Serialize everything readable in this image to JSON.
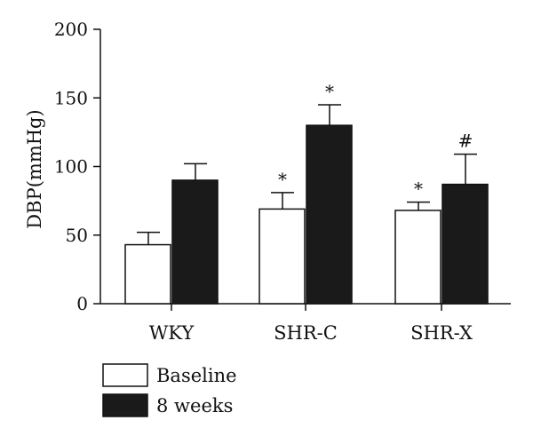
{
  "chart_data": {
    "type": "bar",
    "ylabel": "DBP(mmHg)",
    "xlabel": "",
    "ylim": [
      0,
      200
    ],
    "yticks": [
      0,
      50,
      100,
      150,
      200
    ],
    "categories": [
      "WKY",
      "SHR-C",
      "SHR-X"
    ],
    "series": [
      {
        "name": "Baseline",
        "fill": "#ffffff",
        "values": [
          43,
          69,
          68
        ],
        "errors": [
          9,
          12,
          6
        ],
        "annotations": [
          "",
          "*",
          "*"
        ]
      },
      {
        "name": "8 weeks",
        "fill": "#1a1a1a",
        "values": [
          90,
          130,
          87
        ],
        "errors": [
          12,
          15,
          22
        ],
        "annotations": [
          "",
          "*",
          "#"
        ]
      }
    ],
    "legend_position": "bottom-left",
    "grid": false
  }
}
